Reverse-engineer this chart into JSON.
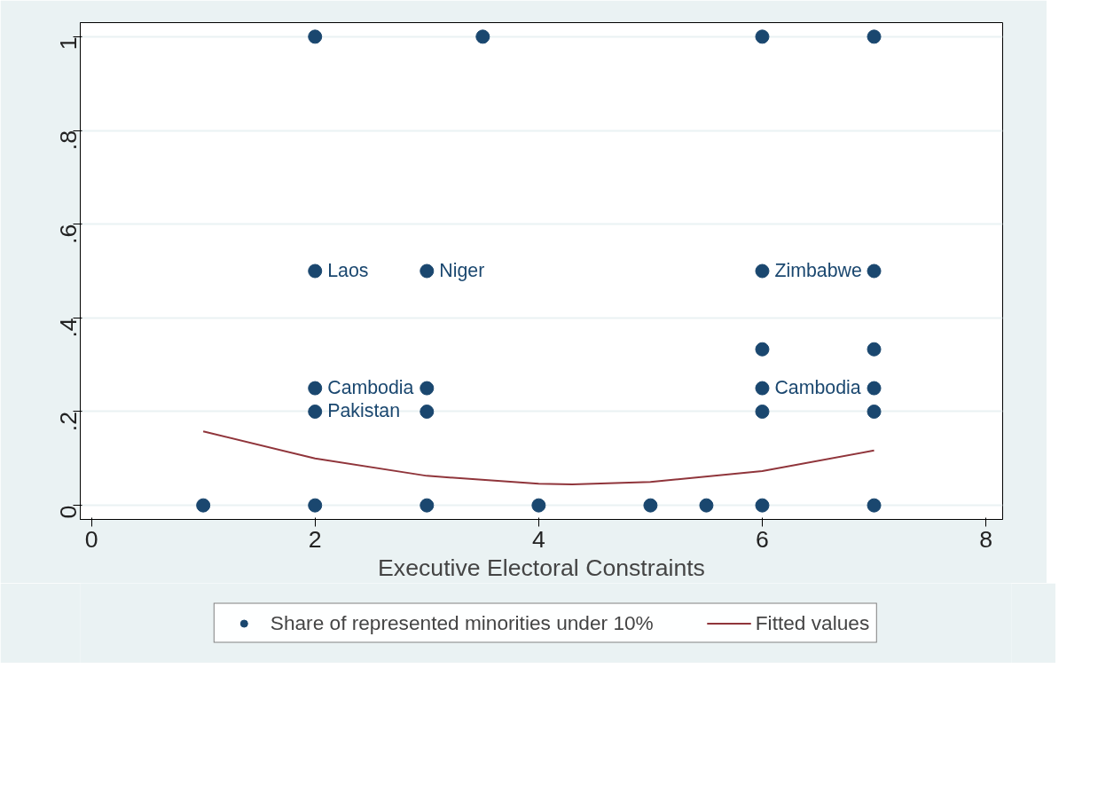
{
  "chart_data": {
    "type": "scatter",
    "xlabel": "Executive Electoral Constraints",
    "xlim": [
      -0.1,
      8.15
    ],
    "xticks": [
      0,
      2,
      4,
      6,
      8
    ],
    "ylim": [
      -0.03,
      1.03
    ],
    "yticks": [
      {
        "value": 0,
        "label": "0"
      },
      {
        "value": 0.2,
        "label": ".2"
      },
      {
        "value": 0.4,
        "label": ".4"
      },
      {
        "value": 0.6,
        "label": ".6"
      },
      {
        "value": 0.8,
        "label": ".8"
      },
      {
        "value": 1,
        "label": "1"
      }
    ],
    "grid": "y",
    "legend": "bottom",
    "series": [
      {
        "name": "Share of represented minorities under 10%",
        "marker": "circle",
        "color": "#1a476f",
        "x": [
          2,
          3.5,
          6,
          7,
          2,
          3,
          6,
          7,
          6,
          7,
          2,
          3,
          6,
          7,
          2,
          3,
          6,
          7,
          1,
          2,
          3,
          4,
          5,
          5.5,
          6,
          7
        ],
        "values": [
          1,
          1,
          1,
          1,
          0.5,
          0.5,
          0.5,
          0.5,
          0.333,
          0.333,
          0.25,
          0.25,
          0.25,
          0.25,
          0.2,
          0.2,
          0.2,
          0.2,
          0,
          0,
          0,
          0,
          0,
          0,
          0,
          0
        ]
      },
      {
        "name": "Fitted values",
        "type": "line",
        "color": "#90353b",
        "line_style": "solid",
        "x": [
          1,
          2,
          3,
          4,
          4.3,
          5,
          6,
          7
        ],
        "values": [
          0.158,
          0.1,
          0.063,
          0.046,
          0.045,
          0.05,
          0.073,
          0.117
        ]
      }
    ],
    "annotations": [
      {
        "text": "Laos",
        "x": 2,
        "y": 0.5
      },
      {
        "text": "Niger",
        "x": 3,
        "y": 0.5
      },
      {
        "text": "Zimbabwe",
        "x": 6,
        "y": 0.5
      },
      {
        "text": "Cambodia",
        "x": 2,
        "y": 0.25
      },
      {
        "text": "Cambodia",
        "x": 6,
        "y": 0.25
      },
      {
        "text": "Pakistan",
        "x": 2,
        "y": 0.2
      }
    ]
  }
}
